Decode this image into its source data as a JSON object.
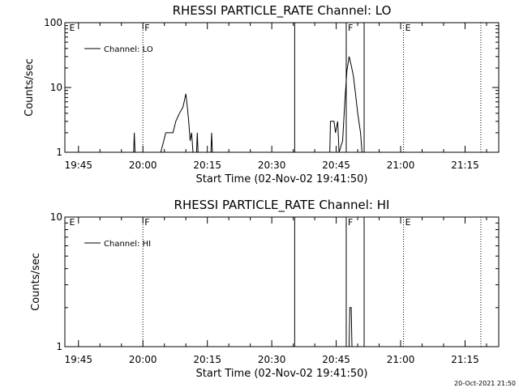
{
  "footer_timestamp": "20-Oct-2021 21:50",
  "chart_data": [
    {
      "type": "line",
      "title": "RHESSI PARTICLE_RATE Channel: LO",
      "xlabel": "Start Time (02-Nov-02 19:41:50)",
      "ylabel": "Counts/sec",
      "yscale": "log",
      "ylim": [
        1,
        100
      ],
      "xlim": [
        "19:41:50",
        "21:22:50"
      ],
      "xticks": [
        "19:45",
        "20:00",
        "20:15",
        "20:30",
        "20:45",
        "21:00",
        "21:15"
      ],
      "yticks": [
        {
          "value": 1,
          "label": "1"
        },
        {
          "value": 10,
          "label": "10"
        },
        {
          "value": 100,
          "label": "100"
        }
      ],
      "grid": false,
      "legend": "top-left",
      "series": [
        {
          "name": "Channel: LO",
          "segments": [
            [
              [
                "19:57:50",
                1
              ],
              [
                "19:58:00",
                2
              ],
              [
                "19:58:10",
                1
              ]
            ],
            [
              [
                "20:04:10",
                1
              ],
              [
                "20:05:20",
                2
              ],
              [
                "20:07:00",
                2
              ],
              [
                "20:07:40",
                3
              ],
              [
                "20:08:30",
                4
              ],
              [
                "20:09:20",
                5
              ],
              [
                "20:10:00",
                8
              ],
              [
                "20:10:20",
                5
              ],
              [
                "20:10:40",
                3
              ],
              [
                "20:11:00",
                1.5
              ],
              [
                "20:11:20",
                2
              ],
              [
                "20:11:40",
                1
              ]
            ],
            [
              [
                "20:12:30",
                1
              ],
              [
                "20:12:40",
                2
              ],
              [
                "20:12:50",
                1
              ]
            ],
            [
              [
                "20:15:50",
                1
              ],
              [
                "20:16:00",
                2
              ],
              [
                "20:16:10",
                1
              ]
            ],
            [
              [
                "20:43:30",
                1
              ],
              [
                "20:43:40",
                3
              ],
              [
                "20:44:30",
                3
              ],
              [
                "20:44:50",
                2
              ],
              [
                "20:45:20",
                3
              ],
              [
                "20:45:40",
                1
              ],
              [
                "20:46:30",
                1.5
              ],
              [
                "20:47:00",
                6
              ],
              [
                "20:47:30",
                18
              ],
              [
                "20:48:00",
                30
              ],
              [
                "20:48:30",
                22
              ],
              [
                "20:49:00",
                15
              ],
              [
                "20:49:30",
                8
              ],
              [
                "20:50:00",
                4
              ],
              [
                "20:50:40",
                2
              ],
              [
                "20:51:00",
                1
              ]
            ]
          ]
        }
      ],
      "markers": [
        {
          "time": "19:42:30",
          "label": "E",
          "style": "none"
        },
        {
          "time": "20:00:00",
          "label": "F",
          "style": "dotted"
        },
        {
          "time": "20:35:20",
          "label": "",
          "style": "solid"
        },
        {
          "time": "20:47:20",
          "label": "F",
          "style": "solid"
        },
        {
          "time": "20:51:30",
          "label": "",
          "style": "solid"
        },
        {
          "time": "21:00:40",
          "label": "E",
          "style": "dotted"
        },
        {
          "time": "21:18:40",
          "label": "",
          "style": "dotted"
        }
      ]
    },
    {
      "type": "line",
      "title": "RHESSI PARTICLE_RATE Channel: HI",
      "xlabel": "Start Time (02-Nov-02 19:41:50)",
      "ylabel": "Counts/sec",
      "yscale": "log",
      "ylim": [
        1,
        10
      ],
      "xlim": [
        "19:41:50",
        "21:22:50"
      ],
      "xticks": [
        "19:45",
        "20:00",
        "20:15",
        "20:30",
        "20:45",
        "21:00",
        "21:15"
      ],
      "yticks": [
        {
          "value": 1,
          "label": "1"
        },
        {
          "value": 10,
          "label": "10"
        }
      ],
      "grid": false,
      "legend": "top-left",
      "series": [
        {
          "name": "Channel: HI",
          "segments": [
            [
              [
                "20:48:00",
                1
              ],
              [
                "20:48:10",
                2
              ],
              [
                "20:48:30",
                2
              ],
              [
                "20:48:40",
                1
              ]
            ]
          ]
        }
      ],
      "markers": [
        {
          "time": "19:42:30",
          "label": "E",
          "style": "none"
        },
        {
          "time": "20:00:00",
          "label": "F",
          "style": "dotted"
        },
        {
          "time": "20:35:20",
          "label": "",
          "style": "solid"
        },
        {
          "time": "20:47:20",
          "label": "F",
          "style": "solid"
        },
        {
          "time": "20:51:30",
          "label": "",
          "style": "solid"
        },
        {
          "time": "21:00:40",
          "label": "E",
          "style": "dotted"
        },
        {
          "time": "21:18:40",
          "label": "",
          "style": "dotted"
        }
      ]
    }
  ]
}
